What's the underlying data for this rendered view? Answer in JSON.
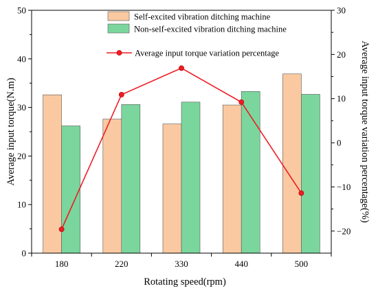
{
  "chart_data": {
    "type": "bar",
    "categories": [
      "180",
      "220",
      "330",
      "440",
      "500"
    ],
    "xlabel": "Rotating speed(rpm)",
    "ylabel": "Average input torque(N.m)",
    "ylim": [
      0,
      50
    ],
    "yticks": [
      0,
      10,
      20,
      30,
      40,
      50
    ],
    "y2label": "Average input torque variation percentage(%)",
    "y2lim": [
      -25,
      30
    ],
    "y2ticks": [
      -20,
      -10,
      0,
      10,
      20,
      30
    ],
    "legend_placement": "top-center",
    "grid": false,
    "series": [
      {
        "name": "Self-excited vibration ditching machine",
        "type": "bar",
        "axis": "left",
        "color": "#FAC9A1",
        "values": [
          32.6,
          27.6,
          26.6,
          30.5,
          36.9
        ]
      },
      {
        "name": "Non-self-excited vibration ditching machine",
        "type": "bar",
        "axis": "left",
        "color": "#7BD69D",
        "values": [
          26.2,
          30.6,
          31.1,
          33.3,
          32.7
        ]
      },
      {
        "name": "Average input torque variation percentage",
        "type": "line",
        "axis": "right",
        "color": "#EE1C24",
        "values": [
          -19.6,
          10.9,
          16.9,
          9.2,
          -11.4
        ]
      }
    ]
  }
}
